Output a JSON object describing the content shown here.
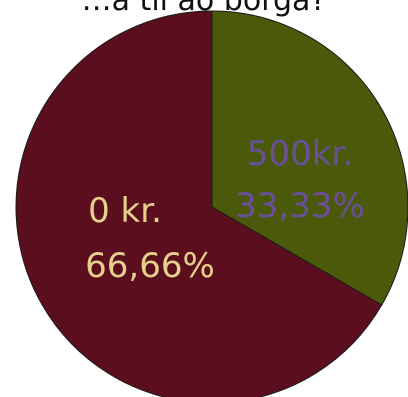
{
  "chart_data": {
    "type": "pie",
    "title": "…a til að borga?",
    "slices": [
      {
        "label": "500kr.",
        "percent_label": "33,33%",
        "value": 33.33,
        "color": "#4b5a0a",
        "text_color": "#6a4f9a"
      },
      {
        "label": "0 kr.",
        "percent_label": "66,66%",
        "value": 66.66,
        "color": "#5b0f1e",
        "text_color": "#e6d08a"
      }
    ],
    "start_angle_deg": 0,
    "direction": "clockwise"
  }
}
